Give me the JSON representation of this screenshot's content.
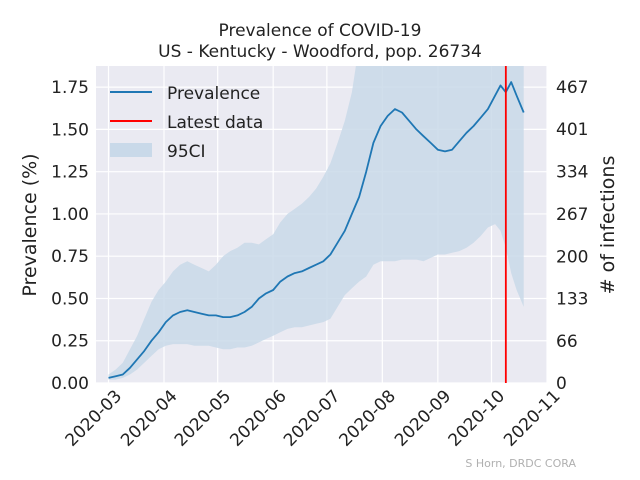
{
  "chart_data": {
    "type": "line",
    "title": "Prevalence of COVID-19",
    "subtitle": "US - Kentucky - Woodford, pop. 26734",
    "ylabel": "Prevalence (%)",
    "ylabel_right": "# of infections",
    "credit": "S Horn, DRDC CORA",
    "ylim": [
      0,
      1.875
    ],
    "xlim": [
      "2020-02-23",
      "2020-11-01"
    ],
    "grid": true,
    "legend_position": "top-left",
    "x_ticks": [
      "2020-03-01",
      "2020-04-01",
      "2020-05-01",
      "2020-06-01",
      "2020-07-01",
      "2020-08-01",
      "2020-09-01",
      "2020-10-01",
      "2020-11-01"
    ],
    "x_tick_labels": [
      "2020-03",
      "2020-04",
      "2020-05",
      "2020-06",
      "2020-07",
      "2020-08",
      "2020-09",
      "2020-10",
      "2020-11"
    ],
    "y_ticks": [
      0.0,
      0.25,
      0.5,
      0.75,
      1.0,
      1.25,
      1.5,
      1.75
    ],
    "y_tick_labels": [
      "0.00",
      "0.25",
      "0.50",
      "0.75",
      "1.00",
      "1.25",
      "1.50",
      "1.75"
    ],
    "y2_ticks": [
      0,
      66,
      133,
      200,
      267,
      334,
      401,
      467
    ],
    "y2_tick_labels": [
      "0",
      "66",
      "133",
      "200",
      "267",
      "334",
      "401",
      "467"
    ],
    "latest_data": "2020-10-09",
    "legend": [
      {
        "label": "Prevalence",
        "kind": "line",
        "color": "#1f77b4"
      },
      {
        "label": "Latest data",
        "kind": "line",
        "color": "#ff0000"
      },
      {
        "label": "95CI",
        "kind": "band",
        "color": "#c9d9e9"
      }
    ],
    "series": [
      {
        "name": "Prevalence",
        "color": "#1f77b4",
        "x": [
          "2020-03-01",
          "2020-03-05",
          "2020-03-09",
          "2020-03-13",
          "2020-03-17",
          "2020-03-21",
          "2020-03-25",
          "2020-03-29",
          "2020-04-02",
          "2020-04-06",
          "2020-04-10",
          "2020-04-14",
          "2020-04-18",
          "2020-04-22",
          "2020-04-26",
          "2020-04-30",
          "2020-05-04",
          "2020-05-08",
          "2020-05-12",
          "2020-05-16",
          "2020-05-20",
          "2020-05-24",
          "2020-05-28",
          "2020-06-01",
          "2020-06-05",
          "2020-06-09",
          "2020-06-13",
          "2020-06-17",
          "2020-06-21",
          "2020-06-25",
          "2020-06-29",
          "2020-07-03",
          "2020-07-07",
          "2020-07-11",
          "2020-07-15",
          "2020-07-19",
          "2020-07-23",
          "2020-07-27",
          "2020-07-31",
          "2020-08-04",
          "2020-08-08",
          "2020-08-12",
          "2020-08-16",
          "2020-08-20",
          "2020-08-24",
          "2020-08-28",
          "2020-09-01",
          "2020-09-05",
          "2020-09-09",
          "2020-09-13",
          "2020-09-17",
          "2020-09-21",
          "2020-09-25",
          "2020-09-29",
          "2020-10-03",
          "2020-10-06",
          "2020-10-09",
          "2020-10-12",
          "2020-10-15",
          "2020-10-19"
        ],
        "y": [
          0.03,
          0.04,
          0.05,
          0.09,
          0.14,
          0.19,
          0.25,
          0.3,
          0.36,
          0.4,
          0.42,
          0.43,
          0.42,
          0.41,
          0.4,
          0.4,
          0.39,
          0.39,
          0.4,
          0.42,
          0.45,
          0.5,
          0.53,
          0.55,
          0.6,
          0.63,
          0.65,
          0.66,
          0.68,
          0.7,
          0.72,
          0.76,
          0.83,
          0.9,
          1.0,
          1.1,
          1.25,
          1.42,
          1.52,
          1.58,
          1.62,
          1.6,
          1.55,
          1.5,
          1.46,
          1.42,
          1.38,
          1.37,
          1.38,
          1.43,
          1.48,
          1.52,
          1.57,
          1.62,
          1.7,
          1.76,
          1.72,
          1.78,
          1.7,
          1.6
        ]
      }
    ],
    "ci_band": {
      "name": "95CI",
      "x": [
        "2020-03-01",
        "2020-03-05",
        "2020-03-09",
        "2020-03-13",
        "2020-03-17",
        "2020-03-21",
        "2020-03-25",
        "2020-03-29",
        "2020-04-02",
        "2020-04-06",
        "2020-04-10",
        "2020-04-14",
        "2020-04-18",
        "2020-04-22",
        "2020-04-26",
        "2020-04-30",
        "2020-05-04",
        "2020-05-08",
        "2020-05-12",
        "2020-05-16",
        "2020-05-20",
        "2020-05-24",
        "2020-05-28",
        "2020-06-01",
        "2020-06-05",
        "2020-06-09",
        "2020-06-13",
        "2020-06-17",
        "2020-06-21",
        "2020-06-25",
        "2020-06-29",
        "2020-07-03",
        "2020-07-07",
        "2020-07-11",
        "2020-07-15",
        "2020-07-19",
        "2020-07-23",
        "2020-07-27",
        "2020-07-31",
        "2020-08-04",
        "2020-08-08",
        "2020-08-12",
        "2020-08-16",
        "2020-08-20",
        "2020-08-24",
        "2020-08-28",
        "2020-09-01",
        "2020-09-05",
        "2020-09-09",
        "2020-09-13",
        "2020-09-17",
        "2020-09-21",
        "2020-09-25",
        "2020-09-29",
        "2020-10-03",
        "2020-10-06",
        "2020-10-09",
        "2020-10-12",
        "2020-10-15",
        "2020-10-19"
      ],
      "lower": [
        0.02,
        0.02,
        0.03,
        0.05,
        0.08,
        0.12,
        0.16,
        0.2,
        0.22,
        0.23,
        0.23,
        0.23,
        0.22,
        0.22,
        0.22,
        0.21,
        0.2,
        0.2,
        0.21,
        0.21,
        0.22,
        0.24,
        0.26,
        0.28,
        0.3,
        0.32,
        0.33,
        0.33,
        0.34,
        0.35,
        0.36,
        0.38,
        0.45,
        0.52,
        0.56,
        0.6,
        0.63,
        0.7,
        0.72,
        0.72,
        0.72,
        0.73,
        0.73,
        0.73,
        0.72,
        0.74,
        0.76,
        0.76,
        0.77,
        0.78,
        0.8,
        0.83,
        0.87,
        0.92,
        0.94,
        0.9,
        0.8,
        0.65,
        0.55,
        0.45
      ],
      "upper": [
        0.05,
        0.08,
        0.12,
        0.2,
        0.28,
        0.38,
        0.48,
        0.55,
        0.6,
        0.66,
        0.7,
        0.72,
        0.7,
        0.68,
        0.66,
        0.7,
        0.75,
        0.78,
        0.8,
        0.83,
        0.83,
        0.82,
        0.85,
        0.88,
        0.95,
        1.0,
        1.03,
        1.06,
        1.1,
        1.15,
        1.22,
        1.3,
        1.42,
        1.55,
        1.72,
        2.0,
        2.3,
        2.5,
        2.6,
        2.65,
        2.7,
        2.7,
        2.7,
        2.7,
        2.7,
        2.7,
        2.7,
        2.7,
        2.7,
        2.7,
        2.7,
        2.7,
        2.7,
        2.7,
        2.7,
        2.7,
        2.7,
        2.7,
        2.7,
        2.7
      ]
    }
  }
}
